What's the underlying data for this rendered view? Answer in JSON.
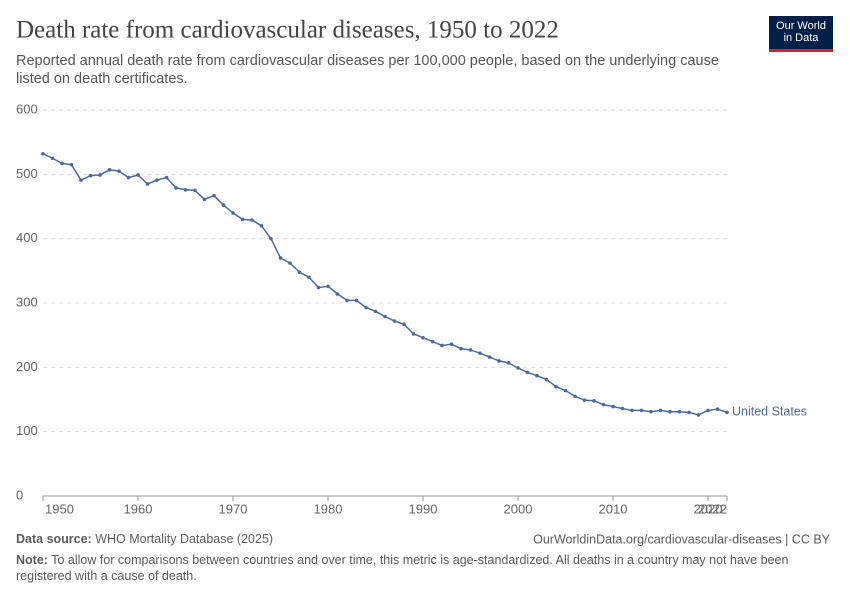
{
  "logo": "Our World\nin Data",
  "chart_data": {
    "type": "line",
    "title": "Death rate from cardiovascular diseases, 1950 to 2022",
    "subtitle": "Reported annual death rate from cardiovascular diseases per 100,000 people, based on the underlying cause listed on death certificates.",
    "x": [
      1950,
      1951,
      1952,
      1953,
      1954,
      1955,
      1956,
      1957,
      1958,
      1959,
      1960,
      1961,
      1962,
      1963,
      1964,
      1965,
      1966,
      1967,
      1968,
      1969,
      1970,
      1971,
      1972,
      1973,
      1974,
      1975,
      1976,
      1977,
      1978,
      1979,
      1980,
      1981,
      1982,
      1983,
      1984,
      1985,
      1986,
      1987,
      1988,
      1989,
      1990,
      1991,
      1992,
      1993,
      1994,
      1995,
      1996,
      1997,
      1998,
      1999,
      2000,
      2001,
      2002,
      2003,
      2004,
      2005,
      2006,
      2007,
      2008,
      2009,
      2010,
      2011,
      2012,
      2013,
      2014,
      2015,
      2016,
      2017,
      2018,
      2019,
      2020,
      2021,
      2022
    ],
    "series": [
      {
        "name": "United States",
        "color": "#4c6a9c",
        "values": [
          532,
          525,
          517,
          515,
          491,
          498,
          499,
          507,
          505,
          495,
          499,
          485,
          491,
          495,
          479,
          476,
          475,
          461,
          467,
          452,
          440,
          430,
          429,
          420,
          400,
          370,
          362,
          348,
          340,
          324,
          326,
          314,
          304,
          304,
          293,
          287,
          279,
          272,
          267,
          252,
          246,
          240,
          234,
          236,
          229,
          227,
          222,
          216,
          210,
          207,
          199,
          192,
          187,
          181,
          170,
          164,
          155,
          149,
          148,
          142,
          139,
          136,
          133,
          133,
          131,
          133,
          131,
          131,
          130,
          126,
          133,
          135,
          130
        ]
      }
    ],
    "xlim": [
      1950,
      2022
    ],
    "xticks": [
      1950,
      1960,
      1970,
      1980,
      1990,
      2000,
      2010,
      2020,
      2022
    ],
    "ylim": [
      0,
      600
    ],
    "yticks": [
      0,
      100,
      200,
      300,
      400,
      500,
      600
    ],
    "grid": true,
    "source_label": "Data source:",
    "source": "WHO Mortality Database (2025)",
    "url": "OurWorldinData.org/cardiovascular-diseases | CC BY",
    "note_label": "Note:",
    "note": "To allow for comparisons between countries and over time, this metric is age-standardized. All deaths in a country may not have been registered with a cause of death."
  }
}
